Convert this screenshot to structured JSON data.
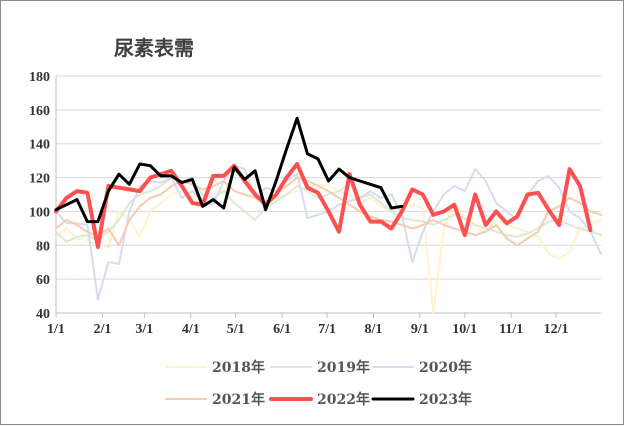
{
  "chart_data": {
    "type": "line",
    "title": "尿素表需",
    "xlabel": "",
    "ylabel": "",
    "ylim": [
      40,
      180
    ],
    "yticks": [
      40,
      60,
      80,
      100,
      120,
      140,
      160,
      180
    ],
    "xlim": [
      1,
      53
    ],
    "xticks": [
      {
        "label": "1/1",
        "x": 1
      },
      {
        "label": "2/1",
        "x": 5.43
      },
      {
        "label": "3/1",
        "x": 9.43
      },
      {
        "label": "4/1",
        "x": 13.86
      },
      {
        "label": "5/1",
        "x": 18.14
      },
      {
        "label": "6/1",
        "x": 22.57
      },
      {
        "label": "7/1",
        "x": 26.86
      },
      {
        "label": "8/1",
        "x": 31.29
      },
      {
        "label": "9/1",
        "x": 35.71
      },
      {
        "label": "10/1",
        "x": 40
      },
      {
        "label": "11/1",
        "x": 44.43
      },
      {
        "label": "12/1",
        "x": 48.71
      }
    ],
    "grid": {
      "horizontal": true,
      "vertical": false
    },
    "legend_position": "bottom",
    "series": [
      {
        "name": "2018年",
        "color": "#fff2cc",
        "width": 2,
        "values": [
          85,
          90,
          84,
          83,
          80,
          79,
          100,
          95,
          85,
          100,
          105,
          110,
          112,
          108,
          105,
          120,
          110,
          125,
          118,
          112,
          106,
          108,
          110,
          112,
          114,
          116,
          115,
          112,
          110,
          105,
          108,
          103,
          101,
          102,
          104,
          102,
          35,
          90,
          105,
          95,
          90,
          88,
          95,
          92,
          90,
          88,
          85,
          75,
          72,
          76,
          90,
          92,
          95
        ]
      },
      {
        "name": "2019年",
        "color": "#d9ead3",
        "width": 2,
        "values": [
          88,
          82,
          85,
          86,
          83,
          88,
          95,
          105,
          110,
          112,
          115,
          120,
          117,
          118,
          110,
          108,
          112,
          105,
          100,
          95,
          102,
          106,
          110,
          115,
          112,
          108,
          110,
          112,
          116,
          108,
          110,
          105,
          100,
          96,
          95,
          94,
          92,
          95,
          98,
          96,
          92,
          90,
          88,
          86,
          85,
          87,
          90,
          94,
          95,
          92,
          90,
          88,
          86
        ]
      },
      {
        "name": "2020年",
        "color": "#d4dcf2",
        "width": 2,
        "values": [
          100,
          93,
          93,
          92,
          48,
          70,
          69,
          100,
          115,
          118,
          117,
          120,
          108,
          112,
          106,
          104,
          118,
          127,
          125,
          108,
          114,
          112,
          118,
          122,
          96,
          98,
          100,
          104,
          106,
          108,
          112,
          108,
          110,
          98,
          70,
          88,
          100,
          110,
          115,
          112,
          125,
          118,
          105,
          100,
          95,
          110,
          118,
          121,
          114,
          100,
          96,
          88,
          75
        ]
      },
      {
        "name": "2021年",
        "color": "#f8cbad",
        "width": 2,
        "values": [
          90,
          95,
          92,
          88,
          85,
          90,
          80,
          95,
          103,
          108,
          110,
          115,
          118,
          116,
          113,
          115,
          118,
          112,
          110,
          108,
          106,
          110,
          115,
          120,
          118,
          115,
          112,
          108,
          104,
          100,
          97,
          95,
          94,
          92,
          90,
          92,
          95,
          92,
          90,
          88,
          86,
          88,
          92,
          84,
          80,
          84,
          88,
          100,
          103,
          108,
          105,
          100,
          98
        ]
      },
      {
        "name": "2022年",
        "color": "#ff5050",
        "width": 4,
        "values": [
          100,
          108,
          112,
          111,
          79,
          115,
          114,
          113,
          112,
          120,
          122,
          124,
          115,
          105,
          104,
          121,
          121,
          127,
          118,
          110,
          104,
          110,
          120,
          128,
          114,
          111,
          100,
          88,
          122,
          104,
          94,
          94,
          90,
          100,
          113,
          110,
          98,
          100,
          104,
          86,
          110,
          92,
          100,
          93,
          97,
          110,
          111,
          101,
          92,
          125,
          115,
          89
        ]
      },
      {
        "name": "2023年",
        "color": "#000000",
        "width": 3,
        "values": [
          101,
          104,
          107,
          94,
          94,
          112,
          122,
          116,
          128,
          127,
          121,
          121,
          117,
          119,
          103,
          107,
          102,
          126,
          119,
          124,
          101,
          118,
          137,
          155,
          134,
          131,
          118,
          125,
          120,
          118,
          116,
          114,
          102,
          103
        ]
      }
    ]
  }
}
